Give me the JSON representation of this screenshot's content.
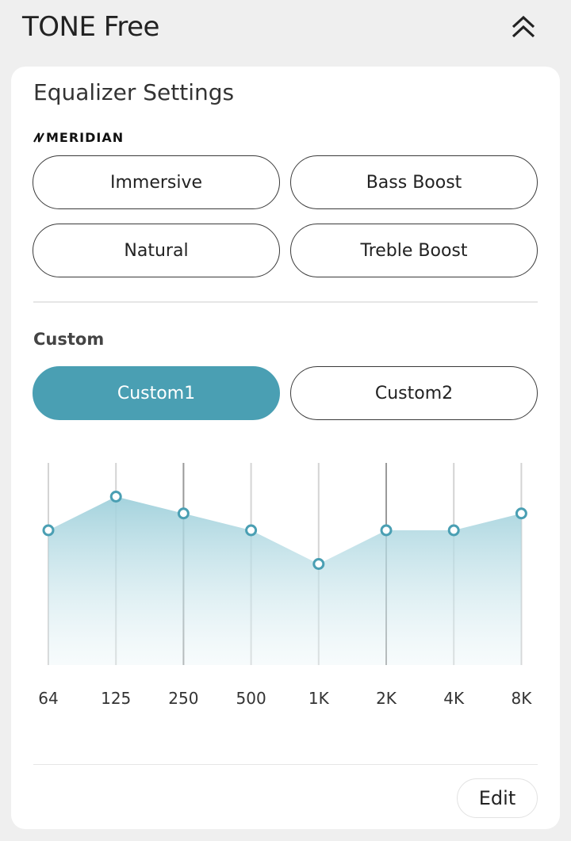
{
  "header": {
    "title": "TONE Free",
    "collapse_icon": "double-chevron-up-icon"
  },
  "equalizer": {
    "title": "Equalizer Settings",
    "brand": "MERIDIAN",
    "presets": [
      "Immersive",
      "Bass Boost",
      "Natural",
      "Treble Boost"
    ],
    "custom_title": "Custom",
    "custom_presets": [
      {
        "label": "Custom1",
        "selected": true
      },
      {
        "label": "Custom2",
        "selected": false
      }
    ],
    "accent_color": "#4a9fb3",
    "edit_label": "Edit"
  },
  "chart_data": {
    "type": "area",
    "categories": [
      "64",
      "125",
      "250",
      "500",
      "1K",
      "2K",
      "4K",
      "8K"
    ],
    "series": [
      {
        "values": [
          2,
          4,
          3,
          2,
          0,
          2,
          2,
          3
        ]
      }
    ],
    "ylim": [
      -6,
      6
    ],
    "grid": true
  }
}
